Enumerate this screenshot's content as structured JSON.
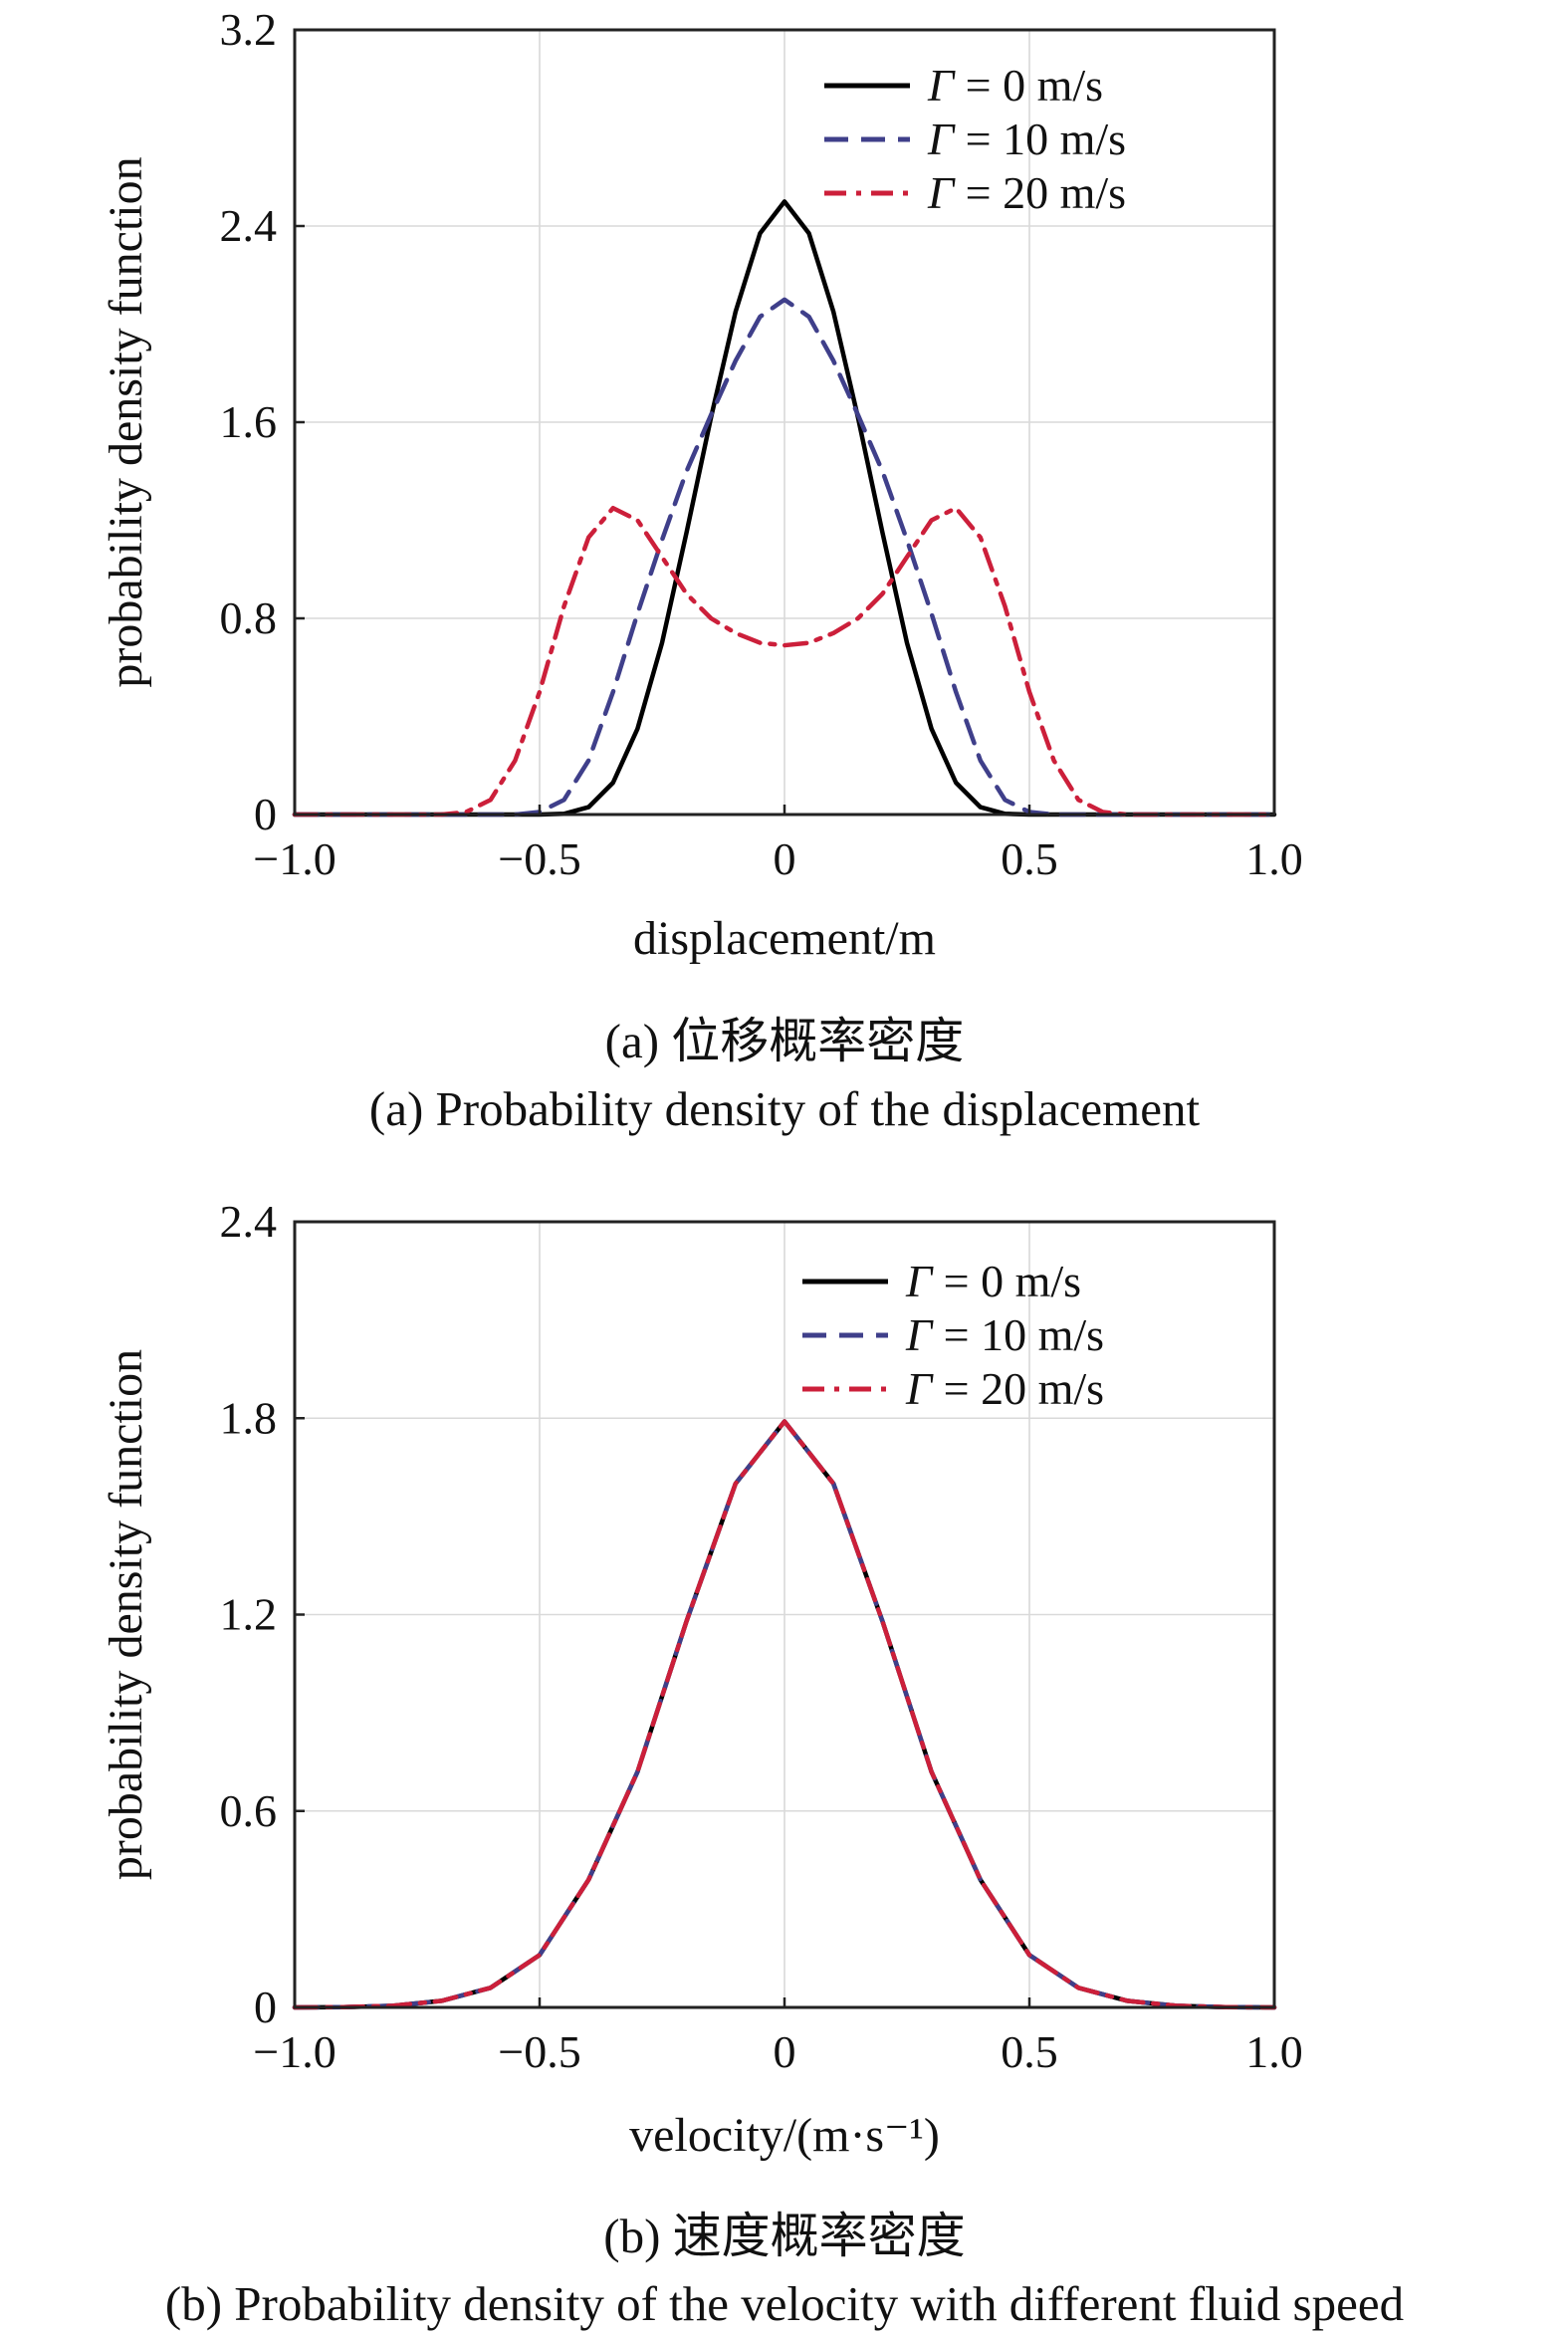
{
  "chart_data": [
    {
      "type": "line",
      "panel": "a",
      "xlabel": "displacement/m",
      "ylabel": "probability density function",
      "xlim": [
        -1.0,
        1.0
      ],
      "ylim": [
        0,
        3.2
      ],
      "xticks": [
        -1.0,
        -0.5,
        0,
        0.5,
        1.0
      ],
      "xtick_labels": [
        "−1.0",
        "−0.5",
        "0",
        "0.5",
        "1.0"
      ],
      "yticks": [
        0,
        0.8,
        1.6,
        2.4,
        3.2
      ],
      "ytick_labels": [
        "0",
        "0.8",
        "1.6",
        "2.4",
        "3.2"
      ],
      "grid": true,
      "legend_position": "top-right",
      "caption_cn": "(a) 位移概率密度",
      "caption_en": "(a) Probability density of the displacement",
      "series": [
        {
          "name": "Γ = 0 m/s",
          "name_symbol": "Γ",
          "name_rest": " = 0 m/s",
          "color": "#000000",
          "dash": "solid",
          "x": [
            -1.0,
            -0.6,
            -0.5,
            -0.45,
            -0.4,
            -0.35,
            -0.3,
            -0.25,
            -0.2,
            -0.15,
            -0.1,
            -0.05,
            0,
            0.05,
            0.1,
            0.15,
            0.2,
            0.25,
            0.3,
            0.35,
            0.4,
            0.45,
            0.5,
            0.6,
            1.0
          ],
          "y": [
            0,
            0,
            0,
            0.003,
            0.03,
            0.13,
            0.35,
            0.7,
            1.15,
            1.62,
            2.05,
            2.37,
            2.5,
            2.37,
            2.05,
            1.62,
            1.15,
            0.7,
            0.35,
            0.13,
            0.03,
            0.003,
            0,
            0,
            0
          ]
        },
        {
          "name": "Γ = 10 m/s",
          "name_symbol": "Γ",
          "name_rest": " = 10 m/s",
          "color": "#3f3f8a",
          "dash": "dashed",
          "x": [
            -1.0,
            -0.6,
            -0.55,
            -0.5,
            -0.45,
            -0.4,
            -0.35,
            -0.3,
            -0.25,
            -0.2,
            -0.15,
            -0.1,
            -0.05,
            0,
            0.05,
            0.1,
            0.15,
            0.2,
            0.25,
            0.3,
            0.35,
            0.4,
            0.45,
            0.5,
            0.55,
            0.6,
            1.0
          ],
          "y": [
            0,
            0,
            0,
            0.01,
            0.06,
            0.22,
            0.5,
            0.82,
            1.12,
            1.4,
            1.63,
            1.85,
            2.03,
            2.1,
            2.03,
            1.85,
            1.63,
            1.4,
            1.12,
            0.82,
            0.5,
            0.22,
            0.06,
            0.01,
            0,
            0,
            0
          ]
        },
        {
          "name": "Γ = 20 m/s",
          "name_symbol": "Γ",
          "name_rest": " = 20 m/s",
          "color": "#cc1f3a",
          "dash": "dashdot",
          "x": [
            -1.0,
            -0.7,
            -0.65,
            -0.6,
            -0.55,
            -0.5,
            -0.45,
            -0.4,
            -0.35,
            -0.3,
            -0.25,
            -0.2,
            -0.15,
            -0.1,
            -0.05,
            0,
            0.05,
            0.1,
            0.15,
            0.2,
            0.25,
            0.3,
            0.35,
            0.4,
            0.45,
            0.5,
            0.55,
            0.6,
            0.65,
            0.7,
            1.0
          ],
          "y": [
            0,
            0,
            0.01,
            0.06,
            0.22,
            0.5,
            0.85,
            1.13,
            1.25,
            1.2,
            1.05,
            0.9,
            0.8,
            0.74,
            0.7,
            0.69,
            0.7,
            0.74,
            0.8,
            0.9,
            1.05,
            1.2,
            1.25,
            1.13,
            0.85,
            0.5,
            0.22,
            0.06,
            0.01,
            0,
            0
          ]
        }
      ]
    },
    {
      "type": "line",
      "panel": "b",
      "xlabel": "velocity/(m·s⁻¹)",
      "ylabel": "probability density function",
      "xlim": [
        -1.0,
        1.0
      ],
      "ylim": [
        0,
        2.4
      ],
      "xticks": [
        -1.0,
        -0.5,
        0,
        0.5,
        1.0
      ],
      "xtick_labels": [
        "−1.0",
        "−0.5",
        "0",
        "0.5",
        "1.0"
      ],
      "yticks": [
        0,
        0.6,
        1.2,
        1.8,
        2.4
      ],
      "ytick_labels": [
        "0",
        "0.6",
        "1.2",
        "1.8",
        "2.4"
      ],
      "grid": true,
      "legend_position": "top-right",
      "caption_cn": "(b) 速度概率密度",
      "caption_en": "(b) Probability density of the velocity with different fluid speed",
      "series": [
        {
          "name": "Γ = 0 m/s",
          "name_symbol": "Γ",
          "name_rest": " = 0 m/s",
          "color": "#000000",
          "dash": "solid",
          "x": [
            -1.0,
            -0.9,
            -0.8,
            -0.7,
            -0.6,
            -0.5,
            -0.4,
            -0.3,
            -0.2,
            -0.1,
            0,
            0.1,
            0.2,
            0.3,
            0.4,
            0.5,
            0.6,
            0.7,
            0.8,
            0.9,
            1.0
          ],
          "y": [
            0.0,
            0.001,
            0.005,
            0.02,
            0.06,
            0.16,
            0.39,
            0.72,
            1.18,
            1.6,
            1.79,
            1.6,
            1.18,
            0.72,
            0.39,
            0.16,
            0.06,
            0.02,
            0.005,
            0.001,
            0.0
          ]
        },
        {
          "name": "Γ = 10 m/s",
          "name_symbol": "Γ",
          "name_rest": " = 10 m/s",
          "color": "#3f3f8a",
          "dash": "dashed",
          "x": [
            -1.0,
            -0.9,
            -0.8,
            -0.7,
            -0.6,
            -0.5,
            -0.4,
            -0.3,
            -0.2,
            -0.1,
            0,
            0.1,
            0.2,
            0.3,
            0.4,
            0.5,
            0.6,
            0.7,
            0.8,
            0.9,
            1.0
          ],
          "y": [
            0.0,
            0.001,
            0.005,
            0.02,
            0.06,
            0.16,
            0.39,
            0.72,
            1.18,
            1.6,
            1.79,
            1.6,
            1.18,
            0.72,
            0.39,
            0.16,
            0.06,
            0.02,
            0.005,
            0.001,
            0.0
          ]
        },
        {
          "name": "Γ = 20 m/s",
          "name_symbol": "Γ",
          "name_rest": " = 20 m/s",
          "color": "#cc1f3a",
          "dash": "dashdot",
          "x": [
            -1.0,
            -0.9,
            -0.8,
            -0.7,
            -0.6,
            -0.5,
            -0.4,
            -0.3,
            -0.2,
            -0.1,
            0,
            0.1,
            0.2,
            0.3,
            0.4,
            0.5,
            0.6,
            0.7,
            0.8,
            0.9,
            1.0
          ],
          "y": [
            0.0,
            0.001,
            0.005,
            0.02,
            0.06,
            0.16,
            0.39,
            0.72,
            1.18,
            1.6,
            1.79,
            1.6,
            1.18,
            0.72,
            0.39,
            0.16,
            0.06,
            0.02,
            0.005,
            0.001,
            0.0
          ]
        }
      ]
    }
  ]
}
